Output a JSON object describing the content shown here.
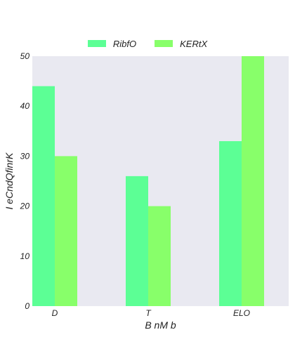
{
  "chart_data": {
    "type": "bar",
    "title": "",
    "xlabel": "B nM b",
    "ylabel": "I eCndQfinrK",
    "categories": [
      "D",
      "T",
      "ELO"
    ],
    "series": [
      {
        "name": "RibfO",
        "values": [
          44,
          26,
          33
        ],
        "color": "#5cff95"
      },
      {
        "name": "KERtX",
        "values": [
          30,
          20,
          50
        ],
        "color": "#88ff6a"
      }
    ],
    "ylim": [
      0,
      50
    ],
    "yticks": [
      0,
      10,
      20,
      30,
      40,
      50
    ],
    "grid": false,
    "legend_position": "top-center",
    "background_color": "#e9e9f1"
  }
}
